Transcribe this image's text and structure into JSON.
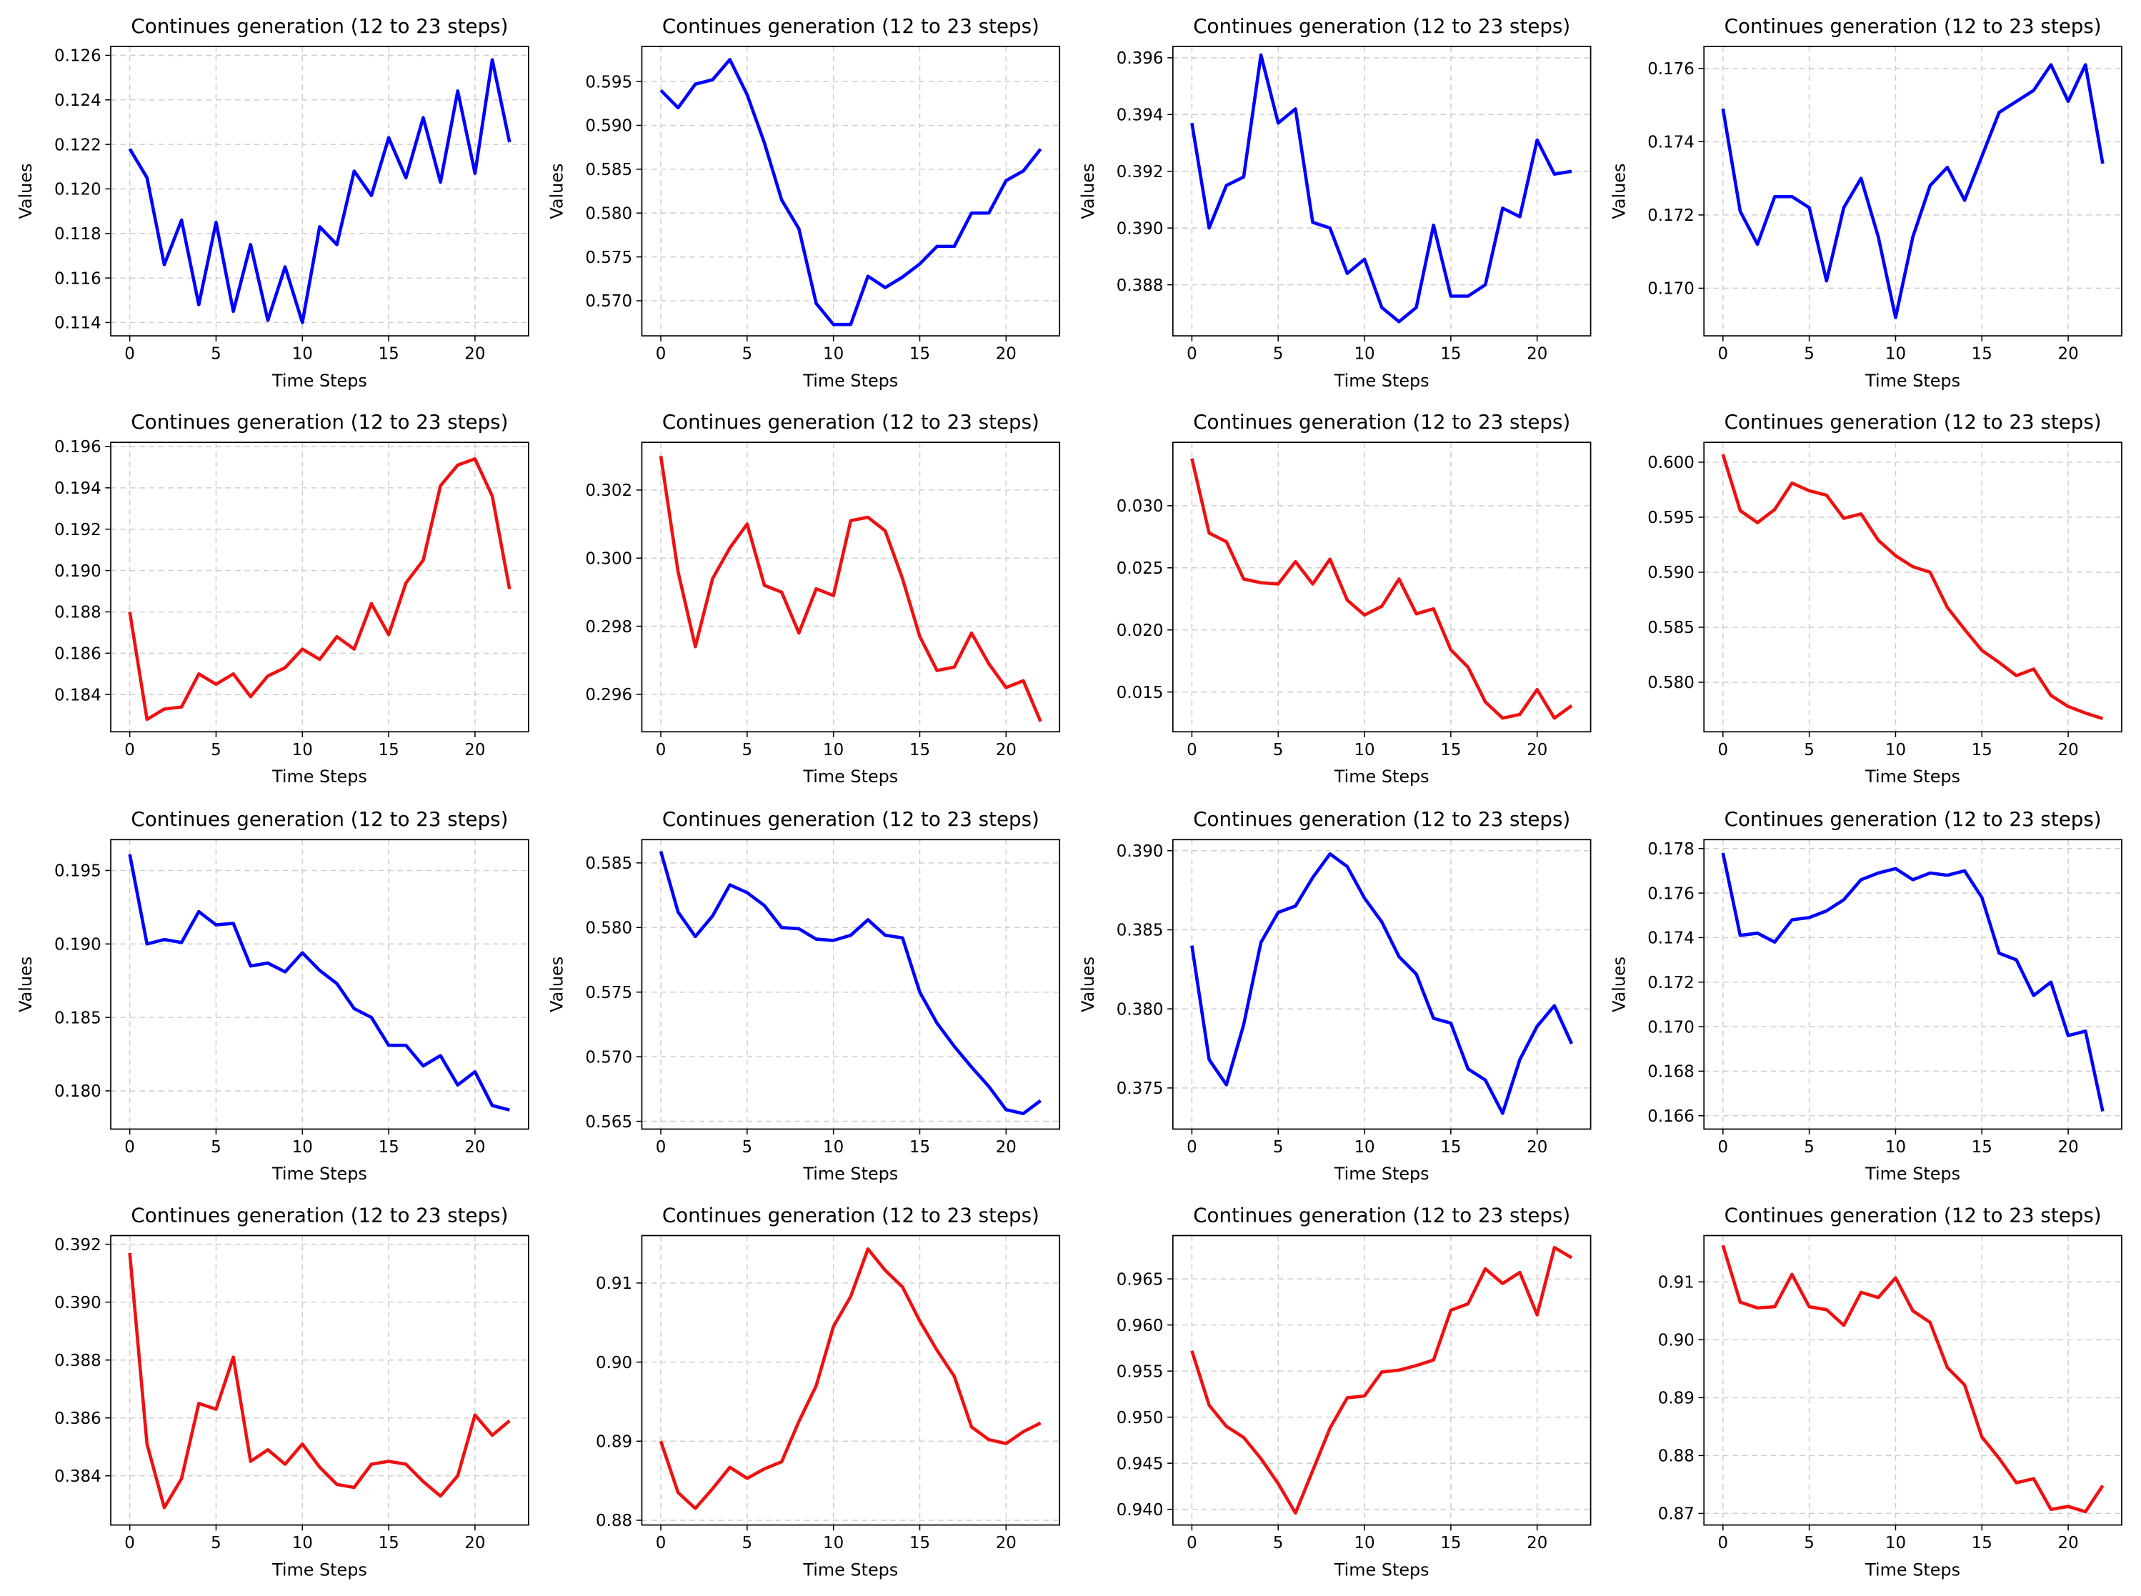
{
  "chart_data": [
    {
      "type": "line",
      "title": "Continues generation (12 to 23 steps)",
      "xlabel": "Time Steps",
      "ylabel": "Values",
      "color": "#0000ff",
      "grid": true,
      "x": [
        0,
        1,
        2,
        3,
        4,
        5,
        6,
        7,
        8,
        9,
        10,
        11,
        12,
        13,
        14,
        15,
        16,
        17,
        18,
        19,
        20,
        21,
        22
      ],
      "values": [
        0.1218,
        0.1205,
        0.1166,
        0.1186,
        0.1148,
        0.1185,
        0.1145,
        0.1175,
        0.1141,
        0.1165,
        0.114,
        0.1183,
        0.1175,
        0.1208,
        0.1197,
        0.1223,
        0.1205,
        0.1232,
        0.1203,
        0.1244,
        0.1207,
        0.1258,
        0.1221
      ],
      "xlim": [
        -1.1,
        23.1
      ],
      "xticks": [
        0,
        5,
        10,
        15,
        20
      ],
      "ylim": [
        0.1134,
        0.1264
      ],
      "yticks": [
        0.114,
        0.116,
        0.118,
        {
          "value": 0.12,
          "label": "0.120"
        },
        0.122,
        0.124,
        0.126
      ]
    },
    {
      "type": "line",
      "title": "Continues generation (12 to 23 steps)",
      "xlabel": "Time Steps",
      "ylabel": "Values",
      "color": "#0000ff",
      "grid": true,
      "x": [
        0,
        1,
        2,
        3,
        4,
        5,
        6,
        7,
        8,
        9,
        10,
        11,
        12,
        13,
        14,
        15,
        16,
        17,
        18,
        19,
        20,
        21,
        22
      ],
      "values": [
        0.594,
        0.592,
        0.5947,
        0.5952,
        0.5975,
        0.5935,
        0.588,
        0.5815,
        0.5782,
        0.5697,
        0.5673,
        0.5673,
        0.5728,
        0.5715,
        0.5727,
        0.5742,
        0.5762,
        0.5762,
        0.58,
        0.58,
        0.5837,
        0.5848,
        0.5873
      ],
      "xlim": [
        -1.1,
        23.1
      ],
      "xticks": [
        0,
        5,
        10,
        15,
        20
      ],
      "ylim": [
        0.566,
        0.599
      ],
      "yticks": [
        {
          "value": 0.57,
          "label": "0.570"
        },
        0.575,
        {
          "value": 0.58,
          "label": "0.580"
        },
        0.585,
        {
          "value": 0.59,
          "label": "0.590"
        },
        0.595
      ]
    },
    {
      "type": "line",
      "title": "Continues generation (12 to 23 steps)",
      "xlabel": "Time Steps",
      "ylabel": "Values",
      "color": "#0000ff",
      "grid": true,
      "x": [
        0,
        1,
        2,
        3,
        4,
        5,
        6,
        7,
        8,
        9,
        10,
        11,
        12,
        13,
        14,
        15,
        16,
        17,
        18,
        19,
        20,
        21,
        22
      ],
      "values": [
        0.3937,
        0.39,
        0.3915,
        0.3918,
        0.3961,
        0.3937,
        0.3942,
        0.3902,
        0.39,
        0.3884,
        0.3889,
        0.3872,
        0.3867,
        0.3872,
        0.3901,
        0.3876,
        0.3876,
        0.388,
        0.3907,
        0.3904,
        0.3931,
        0.3919,
        0.392
      ],
      "xlim": [
        -1.1,
        23.1
      ],
      "xticks": [
        0,
        5,
        10,
        15,
        20
      ],
      "ylim": [
        0.3862,
        0.3964
      ],
      "yticks": [
        0.388,
        {
          "value": 0.39,
          "label": "0.390"
        },
        0.392,
        0.394,
        0.396
      ]
    },
    {
      "type": "line",
      "title": "Continues generation (12 to 23 steps)",
      "xlabel": "Time Steps",
      "ylabel": "Values",
      "color": "#0000ff",
      "grid": true,
      "x": [
        0,
        1,
        2,
        3,
        4,
        5,
        6,
        7,
        8,
        9,
        10,
        11,
        12,
        13,
        14,
        15,
        16,
        17,
        18,
        19,
        20,
        21,
        22
      ],
      "values": [
        0.1749,
        0.1721,
        0.1712,
        0.1725,
        0.1725,
        0.1722,
        0.1702,
        0.1722,
        0.173,
        0.1714,
        0.1692,
        0.1714,
        0.1728,
        0.1733,
        0.1724,
        0.1736,
        0.1748,
        0.1751,
        0.1754,
        0.1761,
        0.1751,
        0.1761,
        0.1734
      ],
      "xlim": [
        -1.1,
        23.1
      ],
      "xticks": [
        0,
        5,
        10,
        15,
        20
      ],
      "ylim": [
        0.1687,
        0.1766
      ],
      "yticks": [
        {
          "value": 0.17,
          "label": "0.170"
        },
        0.172,
        0.174,
        0.176
      ]
    },
    {
      "type": "line",
      "title": "Continues generation (12 to 23 steps)",
      "xlabel": "Time Steps",
      "color": "#ee1111",
      "grid": true,
      "x": [
        0,
        1,
        2,
        3,
        4,
        5,
        6,
        7,
        8,
        9,
        10,
        11,
        12,
        13,
        14,
        15,
        16,
        17,
        18,
        19,
        20,
        21,
        22
      ],
      "values": [
        0.188,
        0.1828,
        0.1833,
        0.1834,
        0.185,
        0.1845,
        0.185,
        0.1839,
        0.1849,
        0.1853,
        0.1862,
        0.1857,
        0.1868,
        0.1862,
        0.1884,
        0.1869,
        0.1894,
        0.1905,
        0.1941,
        0.1951,
        0.1954,
        0.1936,
        0.1891
      ],
      "xlim": [
        -1.1,
        23.1
      ],
      "xticks": [
        0,
        5,
        10,
        15,
        20
      ],
      "ylim": [
        0.1822,
        0.1962
      ],
      "yticks": [
        0.184,
        0.186,
        0.188,
        {
          "value": 0.19,
          "label": "0.190"
        },
        0.192,
        0.194,
        0.196
      ]
    },
    {
      "type": "line",
      "title": "Continues generation (12 to 23 steps)",
      "xlabel": "Time Steps",
      "color": "#ee1111",
      "grid": true,
      "x": [
        0,
        1,
        2,
        3,
        4,
        5,
        6,
        7,
        8,
        9,
        10,
        11,
        12,
        13,
        14,
        15,
        16,
        17,
        18,
        19,
        20,
        21,
        22
      ],
      "values": [
        0.303,
        0.2996,
        0.2974,
        0.2994,
        0.3003,
        0.301,
        0.2992,
        0.299,
        0.2978,
        0.2991,
        0.2989,
        0.3011,
        0.3012,
        0.3008,
        0.2994,
        0.2977,
        0.2967,
        0.2968,
        0.2978,
        0.2969,
        0.2962,
        0.2964,
        0.2952
      ],
      "xlim": [
        -1.1,
        23.1
      ],
      "xticks": [
        0,
        5,
        10,
        15,
        20
      ],
      "ylim": [
        0.2949,
        0.3034
      ],
      "yticks": [
        0.296,
        0.298,
        {
          "value": 0.3,
          "label": "0.300"
        },
        0.302
      ]
    },
    {
      "type": "line",
      "title": "Continues generation (12 to 23 steps)",
      "xlabel": "Time Steps",
      "color": "#ee1111",
      "grid": true,
      "x": [
        0,
        1,
        2,
        3,
        4,
        5,
        6,
        7,
        8,
        9,
        10,
        11,
        12,
        13,
        14,
        15,
        16,
        17,
        18,
        19,
        20,
        21,
        22
      ],
      "values": [
        0.0338,
        0.0278,
        0.0271,
        0.0241,
        0.0238,
        0.0237,
        0.0255,
        0.0237,
        0.0257,
        0.0224,
        0.0212,
        0.0219,
        0.0241,
        0.0213,
        0.0217,
        0.0184,
        0.017,
        0.0142,
        0.0129,
        0.0132,
        0.0152,
        0.0129,
        0.0139
      ],
      "xlim": [
        -1.1,
        23.1
      ],
      "xticks": [
        0,
        5,
        10,
        15,
        20
      ],
      "ylim": [
        0.0118,
        0.0351
      ],
      "yticks": [
        0.015,
        {
          "value": 0.02,
          "label": "0.020"
        },
        0.025,
        {
          "value": 0.03,
          "label": "0.030"
        }
      ]
    },
    {
      "type": "line",
      "title": "Continues generation (12 to 23 steps)",
      "xlabel": "Time Steps",
      "color": "#ee1111",
      "grid": true,
      "x": [
        0,
        1,
        2,
        3,
        4,
        5,
        6,
        7,
        8,
        9,
        10,
        11,
        12,
        13,
        14,
        15,
        16,
        17,
        18,
        19,
        20,
        21,
        22
      ],
      "values": [
        0.6007,
        0.5956,
        0.5945,
        0.5957,
        0.5981,
        0.5974,
        0.597,
        0.5949,
        0.5953,
        0.5929,
        0.5915,
        0.5905,
        0.59,
        0.5868,
        0.5848,
        0.5829,
        0.5818,
        0.5806,
        0.5812,
        0.5788,
        0.5778,
        0.5772,
        0.5767
      ],
      "xlim": [
        -1.1,
        23.1
      ],
      "xticks": [
        0,
        5,
        10,
        15,
        20
      ],
      "ylim": [
        0.5755,
        0.6018
      ],
      "yticks": [
        {
          "value": 0.58,
          "label": "0.580"
        },
        0.585,
        {
          "value": 0.59,
          "label": "0.590"
        },
        0.595,
        {
          "value": 0.6,
          "label": "0.600"
        }
      ]
    },
    {
      "type": "line",
      "title": "Continues generation (12 to 23 steps)",
      "xlabel": "Time Steps",
      "ylabel": "Values",
      "color": "#0000ff",
      "grid": true,
      "x": [
        0,
        1,
        2,
        3,
        4,
        5,
        6,
        7,
        8,
        9,
        10,
        11,
        12,
        13,
        14,
        15,
        16,
        17,
        18,
        19,
        20,
        21,
        22
      ],
      "values": [
        0.1961,
        0.19,
        0.1903,
        0.1901,
        0.1922,
        0.1913,
        0.1914,
        0.1885,
        0.1887,
        0.1881,
        0.1894,
        0.1882,
        0.1873,
        0.1856,
        0.185,
        0.1831,
        0.1831,
        0.1817,
        0.1824,
        0.1804,
        0.1813,
        0.179,
        0.1787
      ],
      "xlim": [
        -1.1,
        23.1
      ],
      "xticks": [
        0,
        5,
        10,
        15,
        20
      ],
      "ylim": [
        0.1774,
        0.1971
      ],
      "yticks": [
        {
          "value": 0.18,
          "label": "0.180"
        },
        0.185,
        {
          "value": 0.19,
          "label": "0.190"
        },
        0.195
      ]
    },
    {
      "type": "line",
      "title": "Continues generation (12 to 23 steps)",
      "xlabel": "Time Steps",
      "ylabel": "Values",
      "color": "#0000ff",
      "grid": true,
      "x": [
        0,
        1,
        2,
        3,
        4,
        5,
        6,
        7,
        8,
        9,
        10,
        11,
        12,
        13,
        14,
        15,
        16,
        17,
        18,
        19,
        20,
        21,
        22
      ],
      "values": [
        0.5859,
        0.5812,
        0.5793,
        0.5809,
        0.5833,
        0.5827,
        0.5817,
        0.58,
        0.5799,
        0.5791,
        0.579,
        0.5794,
        0.5806,
        0.5794,
        0.5792,
        0.575,
        0.5726,
        0.5708,
        0.5692,
        0.5677,
        0.5659,
        0.5656,
        0.5666
      ],
      "xlim": [
        -1.1,
        23.1
      ],
      "xticks": [
        0,
        5,
        10,
        15,
        20
      ],
      "ylim": [
        0.5644,
        0.5868
      ],
      "yticks": [
        0.565,
        {
          "value": 0.57,
          "label": "0.570"
        },
        0.575,
        {
          "value": 0.58,
          "label": "0.580"
        },
        0.585
      ]
    },
    {
      "type": "line",
      "title": "Continues generation (12 to 23 steps)",
      "xlabel": "Time Steps",
      "ylabel": "Values",
      "color": "#0000ff",
      "grid": true,
      "x": [
        0,
        1,
        2,
        3,
        4,
        5,
        6,
        7,
        8,
        9,
        10,
        11,
        12,
        13,
        14,
        15,
        16,
        17,
        18,
        19,
        20,
        21,
        22
      ],
      "values": [
        0.384,
        0.3768,
        0.3752,
        0.379,
        0.3842,
        0.3861,
        0.3865,
        0.3883,
        0.3898,
        0.389,
        0.387,
        0.3855,
        0.3833,
        0.3822,
        0.3794,
        0.3791,
        0.3762,
        0.3755,
        0.3734,
        0.3768,
        0.3789,
        0.3802,
        0.3778
      ],
      "xlim": [
        -1.1,
        23.1
      ],
      "xticks": [
        0,
        5,
        10,
        15,
        20
      ],
      "ylim": [
        0.3724,
        0.3907
      ],
      "yticks": [
        0.375,
        {
          "value": 0.38,
          "label": "0.380"
        },
        0.385,
        {
          "value": 0.39,
          "label": "0.390"
        }
      ]
    },
    {
      "type": "line",
      "title": "Continues generation (12 to 23 steps)",
      "xlabel": "Time Steps",
      "ylabel": "Values",
      "color": "#0000ff",
      "grid": true,
      "x": [
        0,
        1,
        2,
        3,
        4,
        5,
        6,
        7,
        8,
        9,
        10,
        11,
        12,
        13,
        14,
        15,
        16,
        17,
        18,
        19,
        20,
        21,
        22
      ],
      "values": [
        0.1778,
        0.1741,
        0.1742,
        0.1738,
        0.1748,
        0.1749,
        0.1752,
        0.1757,
        0.1766,
        0.1769,
        0.1771,
        0.1766,
        0.1769,
        0.1768,
        0.177,
        0.1758,
        0.1733,
        0.173,
        0.1714,
        0.172,
        0.1696,
        0.1698,
        0.1662
      ],
      "xlim": [
        -1.1,
        23.1
      ],
      "xticks": [
        0,
        5,
        10,
        15,
        20
      ],
      "ylim": [
        0.1654,
        0.1784
      ],
      "yticks": [
        0.166,
        0.168,
        {
          "value": 0.17,
          "label": "0.170"
        },
        0.172,
        0.174,
        0.176,
        0.178
      ]
    },
    {
      "type": "line",
      "title": "Continues generation (12 to 23 steps)",
      "xlabel": "Time Steps",
      "color": "#ee1111",
      "grid": true,
      "x": [
        0,
        1,
        2,
        3,
        4,
        5,
        6,
        7,
        8,
        9,
        10,
        11,
        12,
        13,
        14,
        15,
        16,
        17,
        18,
        19,
        20,
        21,
        22
      ],
      "values": [
        0.3917,
        0.3851,
        0.3829,
        0.3839,
        0.3865,
        0.3863,
        0.3881,
        0.3845,
        0.3849,
        0.3844,
        0.3851,
        0.3843,
        0.3837,
        0.3836,
        0.3844,
        0.3845,
        0.3844,
        0.3838,
        0.3833,
        0.384,
        0.3861,
        0.3854,
        0.3859
      ],
      "xlim": [
        -1.1,
        23.1
      ],
      "xticks": [
        0,
        5,
        10,
        15,
        20
      ],
      "ylim": [
        0.3823,
        0.3923
      ],
      "yticks": [
        0.384,
        0.386,
        0.388,
        {
          "value": 0.39,
          "label": "0.390"
        },
        0.392
      ]
    },
    {
      "type": "line",
      "title": "Continues generation (12 to 23 steps)",
      "xlabel": "Time Steps",
      "color": "#ee1111",
      "grid": true,
      "x": [
        0,
        1,
        2,
        3,
        4,
        5,
        6,
        7,
        8,
        9,
        10,
        11,
        12,
        13,
        14,
        15,
        16,
        17,
        18,
        19,
        20,
        21,
        22
      ],
      "values": [
        0.89,
        0.8835,
        0.8815,
        0.884,
        0.8867,
        0.8853,
        0.8865,
        0.8874,
        0.8925,
        0.897,
        0.9045,
        0.9083,
        0.9143,
        0.9116,
        0.9095,
        0.9052,
        0.9015,
        0.8982,
        0.8918,
        0.8902,
        0.8897,
        0.8912,
        0.8923
      ],
      "xlim": [
        -1.1,
        23.1
      ],
      "xticks": [
        0,
        5,
        10,
        15,
        20
      ],
      "ylim": [
        0.8794,
        0.916
      ],
      "yticks": [
        0.88,
        0.89,
        {
          "value": 0.9,
          "label": "0.90"
        },
        0.91
      ]
    },
    {
      "type": "line",
      "title": "Continues generation (12 to 23 steps)",
      "xlabel": "Time Steps",
      "color": "#ee1111",
      "grid": true,
      "x": [
        0,
        1,
        2,
        3,
        4,
        5,
        6,
        7,
        8,
        9,
        10,
        11,
        12,
        13,
        14,
        15,
        16,
        17,
        18,
        19,
        20,
        21,
        22
      ],
      "values": [
        0.9572,
        0.9513,
        0.949,
        0.9478,
        0.9455,
        0.9428,
        0.9396,
        0.9442,
        0.9488,
        0.9521,
        0.9523,
        0.9549,
        0.9551,
        0.9556,
        0.9562,
        0.9616,
        0.9623,
        0.9661,
        0.9645,
        0.9657,
        0.9611,
        0.9684,
        0.9673
      ],
      "xlim": [
        -1.1,
        23.1
      ],
      "xticks": [
        0,
        5,
        10,
        15,
        20
      ],
      "ylim": [
        0.9383,
        0.9697
      ],
      "yticks": [
        {
          "value": 0.94,
          "label": "0.940"
        },
        0.945,
        {
          "value": 0.95,
          "label": "0.950"
        },
        0.955,
        {
          "value": 0.96,
          "label": "0.960"
        },
        0.965
      ]
    },
    {
      "type": "line",
      "title": "Continues generation (12 to 23 steps)",
      "xlabel": "Time Steps",
      "color": "#ee1111",
      "grid": true,
      "x": [
        0,
        1,
        2,
        3,
        4,
        5,
        6,
        7,
        8,
        9,
        10,
        11,
        12,
        13,
        14,
        15,
        16,
        17,
        18,
        19,
        20,
        21,
        22
      ],
      "values": [
        0.9163,
        0.9065,
        0.9055,
        0.9057,
        0.9113,
        0.9057,
        0.9052,
        0.9025,
        0.9082,
        0.9073,
        0.9107,
        0.905,
        0.903,
        0.8952,
        0.8922,
        0.8832,
        0.8795,
        0.8753,
        0.876,
        0.8707,
        0.8712,
        0.8703,
        0.8748
      ],
      "xlim": [
        -1.1,
        23.1
      ],
      "xticks": [
        0,
        5,
        10,
        15,
        20
      ],
      "ylim": [
        0.868,
        0.918
      ],
      "yticks": [
        0.87,
        0.88,
        0.89,
        {
          "value": 0.9,
          "label": "0.90"
        },
        0.91
      ]
    }
  ]
}
